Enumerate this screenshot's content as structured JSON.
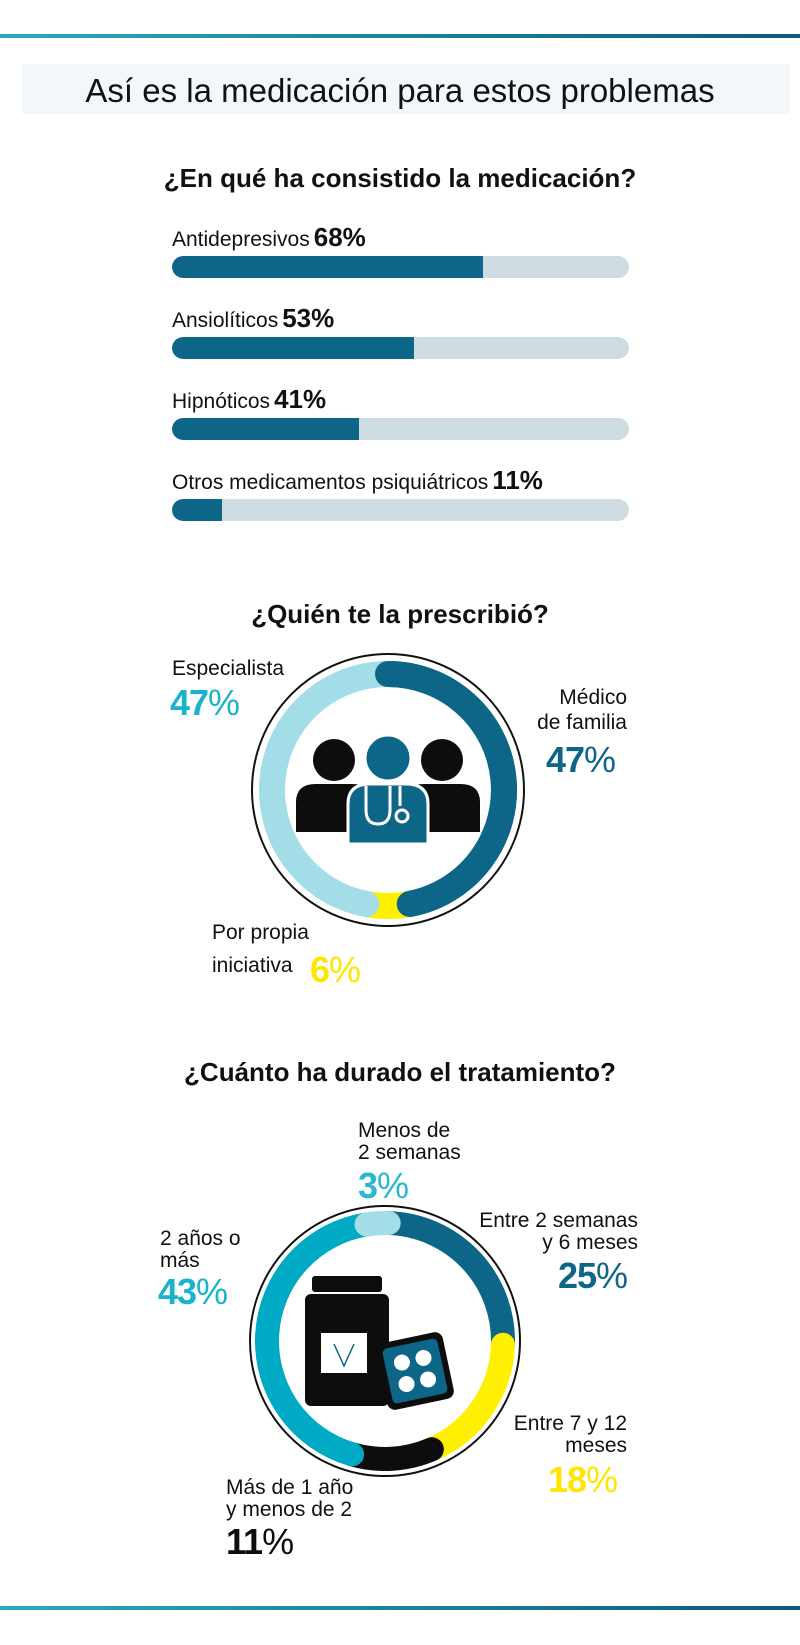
{
  "title": "Así es la medicación para estos problemas",
  "colors": {
    "dark_teal": "#0d6687",
    "light_blue": "#a3dde8",
    "cyan": "#00a9c4",
    "yellow": "#ffef00",
    "black": "#0d0d0d",
    "track": "#cfdce2"
  },
  "chart_data": [
    {
      "type": "bar",
      "title": "¿En qué ha consistido la medicación?",
      "categories": [
        "Antidepresivos",
        "Ansiolíticos",
        "Hipnóticos",
        "Otros medicamentos psiquiátricos"
      ],
      "values": [
        68,
        53,
        41,
        11
      ],
      "value_labels": [
        "68%",
        "53%",
        "41%",
        "11%"
      ],
      "ylim": [
        0,
        100
      ]
    },
    {
      "type": "pie",
      "title": "¿Quién te la prescribió?",
      "slices": [
        {
          "label": "Especialista",
          "value": 47,
          "value_text": "47",
          "color": "#a3dde8"
        },
        {
          "label": "Médico de familia",
          "value": 47,
          "value_text": "47",
          "color": "#0d6687"
        },
        {
          "label": "Por propia iniciativa",
          "value": 6,
          "value_text": "6",
          "color": "#ffef00"
        }
      ],
      "percent_sign": "%",
      "icon": "doctor-group-icon"
    },
    {
      "type": "pie",
      "title": "¿Cuánto ha durado el tratamiento?",
      "slices": [
        {
          "label": "Menos de 2 semanas",
          "value": 3,
          "value_text": "3",
          "color": "#a3dde8"
        },
        {
          "label": "Entre 2 semanas y 6 meses",
          "value": 25,
          "value_text": "25",
          "color": "#0d6687"
        },
        {
          "label": "Entre 7 y 12 meses",
          "value": 18,
          "value_text": "18",
          "color": "#ffef00"
        },
        {
          "label": "Más de 1 año y menos de 2",
          "value": 11,
          "value_text": "11",
          "color": "#0d0d0d"
        },
        {
          "label": "2 años o más",
          "value": 43,
          "value_text": "43",
          "color": "#00a9c4"
        }
      ],
      "percent_sign": "%",
      "icon": "pill-bottle-icon"
    }
  ],
  "labels": {
    "especialista": "Especialista",
    "medico_l1": "Médico",
    "medico_l2": "de familia",
    "propia_l1": "Por propia",
    "propia_l2": "iniciativa",
    "menos2_l1": "Menos de",
    "menos2_l2": "2 semanas",
    "entre2_l1": "Entre 2 semanas",
    "entre2_l2": "y 6 meses",
    "entre7_l1": "Entre 7 y 12",
    "entre7_l2": "meses",
    "mas1_l1": "Más de 1 año",
    "mas1_l2": "y menos de 2",
    "dos_l1": "2 años o",
    "dos_l2": "más"
  }
}
